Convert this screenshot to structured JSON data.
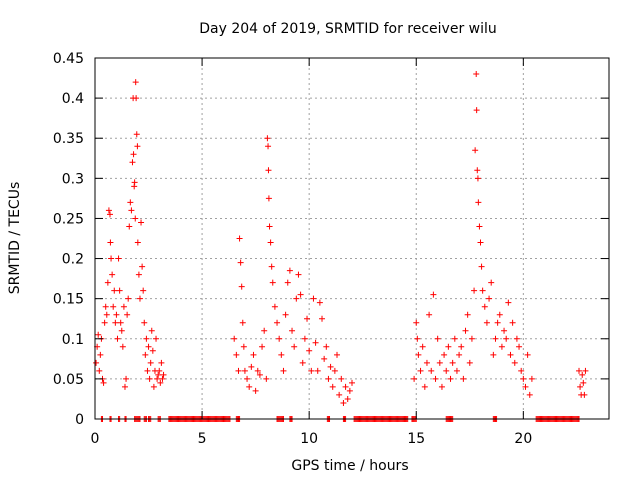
{
  "chart_data": {
    "type": "scatter",
    "title": "Day 204 of 2019, SRMTID for receiver wilu",
    "xlabel": "GPS time / hours",
    "ylabel": "SRMTID / TECUs",
    "xlim": [
      0,
      24
    ],
    "ylim": [
      0,
      0.45
    ],
    "x_ticks": [
      0,
      5,
      10,
      15,
      20
    ],
    "x_tick_labels": [
      "0",
      "5",
      "10",
      "15",
      "20"
    ],
    "y_ticks": [
      0,
      0.05,
      0.1,
      0.15,
      0.2,
      0.25,
      0.3,
      0.35,
      0.4,
      0.45
    ],
    "y_tick_labels": [
      "0",
      "0.05",
      "0.1",
      "0.15",
      "0.2",
      "0.25",
      "0.3",
      "0.35",
      "0.4",
      "0.45"
    ],
    "grid": true,
    "marker": "+",
    "marker_color": "#ff0000",
    "series": [
      {
        "name": "SRMTID",
        "points": [
          [
            0.05,
            0.07
          ],
          [
            0.1,
            0.09
          ],
          [
            0.15,
            0.105
          ],
          [
            0.2,
            0.06
          ],
          [
            0.25,
            0.08
          ],
          [
            0.3,
            0.1
          ],
          [
            0.35,
            0.05
          ],
          [
            0.4,
            0.045
          ],
          [
            0.45,
            0.12
          ],
          [
            0.5,
            0.14
          ],
          [
            0.55,
            0.13
          ],
          [
            0.6,
            0.17
          ],
          [
            0.65,
            0.26
          ],
          [
            0.7,
            0.255
          ],
          [
            0.72,
            0.22
          ],
          [
            0.75,
            0.2
          ],
          [
            0.8,
            0.18
          ],
          [
            0.85,
            0.14
          ],
          [
            0.9,
            0.16
          ],
          [
            0.95,
            0.12
          ],
          [
            1.0,
            0.13
          ],
          [
            1.05,
            0.1
          ],
          [
            1.1,
            0.2
          ],
          [
            1.15,
            0.16
          ],
          [
            1.2,
            0.12
          ],
          [
            1.25,
            0.11
          ],
          [
            1.3,
            0.09
          ],
          [
            1.35,
            0.14
          ],
          [
            1.4,
            0.04
          ],
          [
            1.45,
            0.05
          ],
          [
            1.5,
            0.13
          ],
          [
            1.55,
            0.15
          ],
          [
            1.6,
            0.24
          ],
          [
            1.65,
            0.27
          ],
          [
            1.7,
            0.26
          ],
          [
            1.75,
            0.32
          ],
          [
            1.78,
            0.4
          ],
          [
            1.8,
            0.33
          ],
          [
            1.83,
            0.29
          ],
          [
            1.85,
            0.295
          ],
          [
            1.88,
            0.25
          ],
          [
            1.9,
            0.42
          ],
          [
            1.92,
            0.4
          ],
          [
            1.95,
            0.355
          ],
          [
            1.98,
            0.34
          ],
          [
            2.0,
            0.22
          ],
          [
            2.05,
            0.18
          ],
          [
            2.1,
            0.15
          ],
          [
            2.15,
            0.245
          ],
          [
            2.2,
            0.19
          ],
          [
            2.25,
            0.16
          ],
          [
            2.3,
            0.12
          ],
          [
            2.35,
            0.08
          ],
          [
            2.4,
            0.1
          ],
          [
            2.45,
            0.06
          ],
          [
            2.5,
            0.09
          ],
          [
            2.55,
            0.05
          ],
          [
            2.6,
            0.07
          ],
          [
            2.65,
            0.11
          ],
          [
            2.7,
            0.085
          ],
          [
            2.75,
            0.04
          ],
          [
            2.8,
            0.06
          ],
          [
            2.85,
            0.1
          ],
          [
            2.9,
            0.05
          ],
          [
            2.95,
            0.055
          ],
          [
            3.0,
            0.06
          ],
          [
            3.05,
            0.045
          ],
          [
            3.1,
            0.07
          ],
          [
            3.15,
            0.05
          ],
          [
            3.2,
            0.055
          ],
          [
            6.5,
            0.1
          ],
          [
            6.6,
            0.08
          ],
          [
            6.7,
            0.06
          ],
          [
            6.75,
            0.225
          ],
          [
            6.8,
            0.195
          ],
          [
            6.85,
            0.165
          ],
          [
            6.9,
            0.12
          ],
          [
            6.95,
            0.09
          ],
          [
            7.0,
            0.06
          ],
          [
            7.1,
            0.05
          ],
          [
            7.2,
            0.04
          ],
          [
            7.3,
            0.065
          ],
          [
            7.4,
            0.08
          ],
          [
            7.5,
            0.035
          ],
          [
            7.6,
            0.06
          ],
          [
            7.7,
            0.055
          ],
          [
            7.8,
            0.09
          ],
          [
            7.9,
            0.11
          ],
          [
            8.0,
            0.05
          ],
          [
            8.05,
            0.35
          ],
          [
            8.08,
            0.34
          ],
          [
            8.1,
            0.31
          ],
          [
            8.12,
            0.275
          ],
          [
            8.15,
            0.24
          ],
          [
            8.2,
            0.22
          ],
          [
            8.25,
            0.19
          ],
          [
            8.3,
            0.17
          ],
          [
            8.4,
            0.14
          ],
          [
            8.5,
            0.12
          ],
          [
            8.6,
            0.1
          ],
          [
            8.7,
            0.08
          ],
          [
            8.8,
            0.06
          ],
          [
            8.9,
            0.13
          ],
          [
            9.0,
            0.17
          ],
          [
            9.1,
            0.185
          ],
          [
            9.2,
            0.11
          ],
          [
            9.3,
            0.09
          ],
          [
            9.4,
            0.15
          ],
          [
            9.5,
            0.18
          ],
          [
            9.6,
            0.155
          ],
          [
            9.7,
            0.07
          ],
          [
            9.8,
            0.1
          ],
          [
            9.9,
            0.125
          ],
          [
            10.0,
            0.085
          ],
          [
            10.1,
            0.06
          ],
          [
            10.2,
            0.15
          ],
          [
            10.3,
            0.095
          ],
          [
            10.4,
            0.06
          ],
          [
            10.5,
            0.145
          ],
          [
            10.6,
            0.125
          ],
          [
            10.7,
            0.075
          ],
          [
            10.8,
            0.09
          ],
          [
            10.9,
            0.05
          ],
          [
            11.0,
            0.065
          ],
          [
            11.1,
            0.04
          ],
          [
            11.2,
            0.06
          ],
          [
            11.3,
            0.08
          ],
          [
            11.4,
            0.03
          ],
          [
            11.5,
            0.05
          ],
          [
            11.6,
            0.02
          ],
          [
            11.7,
            0.04
          ],
          [
            11.8,
            0.025
          ],
          [
            11.9,
            0.035
          ],
          [
            12.0,
            0.045
          ],
          [
            14.9,
            0.05
          ],
          [
            15.0,
            0.12
          ],
          [
            15.05,
            0.1
          ],
          [
            15.1,
            0.08
          ],
          [
            15.2,
            0.06
          ],
          [
            15.3,
            0.09
          ],
          [
            15.4,
            0.04
          ],
          [
            15.5,
            0.07
          ],
          [
            15.6,
            0.13
          ],
          [
            15.7,
            0.06
          ],
          [
            15.8,
            0.155
          ],
          [
            15.9,
            0.05
          ],
          [
            16.0,
            0.1
          ],
          [
            16.1,
            0.07
          ],
          [
            16.2,
            0.04
          ],
          [
            16.3,
            0.08
          ],
          [
            16.4,
            0.06
          ],
          [
            16.5,
            0.09
          ],
          [
            16.6,
            0.05
          ],
          [
            16.7,
            0.07
          ],
          [
            16.8,
            0.1
          ],
          [
            16.9,
            0.06
          ],
          [
            17.0,
            0.08
          ],
          [
            17.1,
            0.09
          ],
          [
            17.2,
            0.05
          ],
          [
            17.3,
            0.11
          ],
          [
            17.4,
            0.13
          ],
          [
            17.5,
            0.07
          ],
          [
            17.6,
            0.1
          ],
          [
            17.7,
            0.16
          ],
          [
            17.75,
            0.335
          ],
          [
            17.8,
            0.43
          ],
          [
            17.82,
            0.385
          ],
          [
            17.85,
            0.31
          ],
          [
            17.88,
            0.3
          ],
          [
            17.9,
            0.27
          ],
          [
            17.95,
            0.24
          ],
          [
            18.0,
            0.22
          ],
          [
            18.05,
            0.19
          ],
          [
            18.1,
            0.16
          ],
          [
            18.2,
            0.14
          ],
          [
            18.3,
            0.12
          ],
          [
            18.4,
            0.15
          ],
          [
            18.5,
            0.17
          ],
          [
            18.6,
            0.08
          ],
          [
            18.7,
            0.1
          ],
          [
            18.8,
            0.12
          ],
          [
            18.9,
            0.13
          ],
          [
            19.0,
            0.09
          ],
          [
            19.1,
            0.11
          ],
          [
            19.2,
            0.1
          ],
          [
            19.3,
            0.145
          ],
          [
            19.4,
            0.08
          ],
          [
            19.5,
            0.12
          ],
          [
            19.6,
            0.07
          ],
          [
            19.7,
            0.1
          ],
          [
            19.8,
            0.09
          ],
          [
            19.9,
            0.06
          ],
          [
            20.0,
            0.05
          ],
          [
            20.1,
            0.04
          ],
          [
            20.2,
            0.08
          ],
          [
            20.3,
            0.03
          ],
          [
            20.4,
            0.05
          ],
          [
            22.6,
            0.06
          ],
          [
            22.65,
            0.04
          ],
          [
            22.7,
            0.03
          ],
          [
            22.75,
            0.055
          ],
          [
            22.8,
            0.045
          ],
          [
            22.85,
            0.03
          ],
          [
            22.9,
            0.06
          ]
        ]
      }
    ],
    "zero_runs": [
      [
        0.3,
        0.35
      ],
      [
        0.7,
        0.75
      ],
      [
        1.1,
        1.15
      ],
      [
        1.4,
        1.45
      ],
      [
        1.85,
        1.95
      ],
      [
        2.0,
        2.1
      ],
      [
        2.3,
        2.4
      ],
      [
        2.5,
        2.6
      ],
      [
        2.95,
        3.05
      ],
      [
        3.45,
        6.3
      ],
      [
        6.6,
        6.75
      ],
      [
        8.5,
        8.8
      ],
      [
        9.1,
        9.2
      ],
      [
        10.85,
        10.95
      ],
      [
        11.6,
        11.7
      ],
      [
        12.1,
        14.6
      ],
      [
        14.8,
        15.0
      ],
      [
        16.4,
        16.7
      ],
      [
        18.6,
        18.75
      ],
      [
        20.6,
        22.6
      ]
    ]
  }
}
